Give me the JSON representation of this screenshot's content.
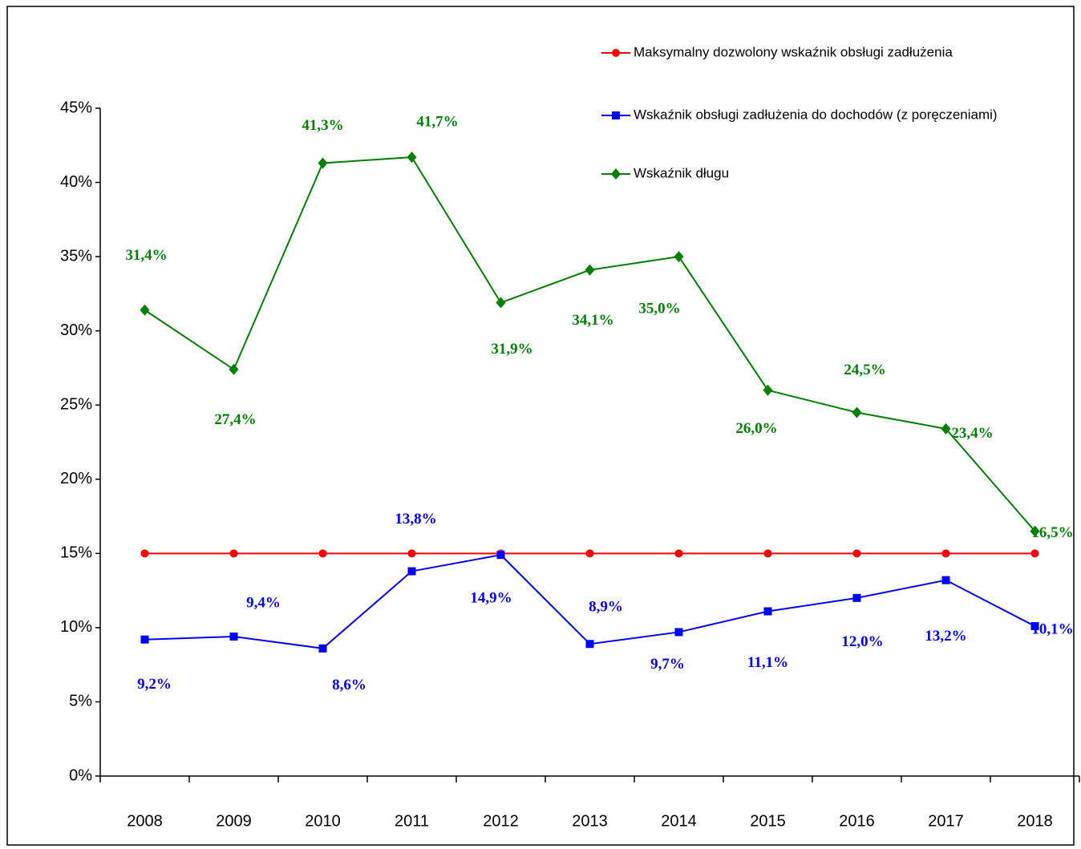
{
  "chart_data": {
    "type": "line",
    "categories": [
      "2008",
      "2009",
      "2010",
      "2011",
      "2012",
      "2013",
      "2014",
      "2015",
      "2016",
      "2017",
      "2018"
    ],
    "series": [
      {
        "name": "Maksymalny dozwolony wskaźnik obsługi zadłużenia",
        "color": "#ff0000",
        "marker": "circle",
        "values": [
          15,
          15,
          15,
          15,
          15,
          15,
          15,
          15,
          15,
          15,
          15
        ]
      },
      {
        "name": "Wskaźnik obsługi zadłużenia do dochodów (z poręczeniami)",
        "color": "#0000ff",
        "marker": "square",
        "values": [
          9.2,
          9.4,
          8.6,
          13.8,
          14.9,
          8.9,
          9.7,
          11.1,
          12.0,
          13.2,
          10.1
        ],
        "value_labels": [
          "9,2%",
          "9,4%",
          "8,6%",
          "13,8%",
          "14,9%",
          "8,9%",
          "9,7%",
          "11,1%",
          "12,0%",
          "13,2%",
          "10,1%"
        ]
      },
      {
        "name": "Wskaźnik długu",
        "color": "#008000",
        "marker": "diamond",
        "values": [
          31.4,
          27.4,
          41.3,
          41.7,
          31.9,
          34.1,
          35.0,
          26.0,
          24.5,
          23.4,
          16.5
        ],
        "value_labels": [
          "31,4%",
          "27,4%",
          "41,3%",
          "41,7%",
          "31,9%",
          "34,1%",
          "35,0%",
          "26,0%",
          "24,5%",
          "23,4%",
          "16,5%"
        ]
      }
    ],
    "ylim": [
      0,
      45
    ],
    "yticks": [
      {
        "value": 0,
        "label": "0%"
      },
      {
        "value": 5,
        "label": "5%"
      },
      {
        "value": 10,
        "label": "10%"
      },
      {
        "value": 15,
        "label": "15%"
      },
      {
        "value": 20,
        "label": "20%"
      },
      {
        "value": 25,
        "label": "25%"
      },
      {
        "value": 30,
        "label": "30%"
      },
      {
        "value": 35,
        "label": "35%"
      },
      {
        "value": 40,
        "label": "40%"
      },
      {
        "value": 45,
        "label": "45%"
      }
    ],
    "legend": "top-right"
  }
}
